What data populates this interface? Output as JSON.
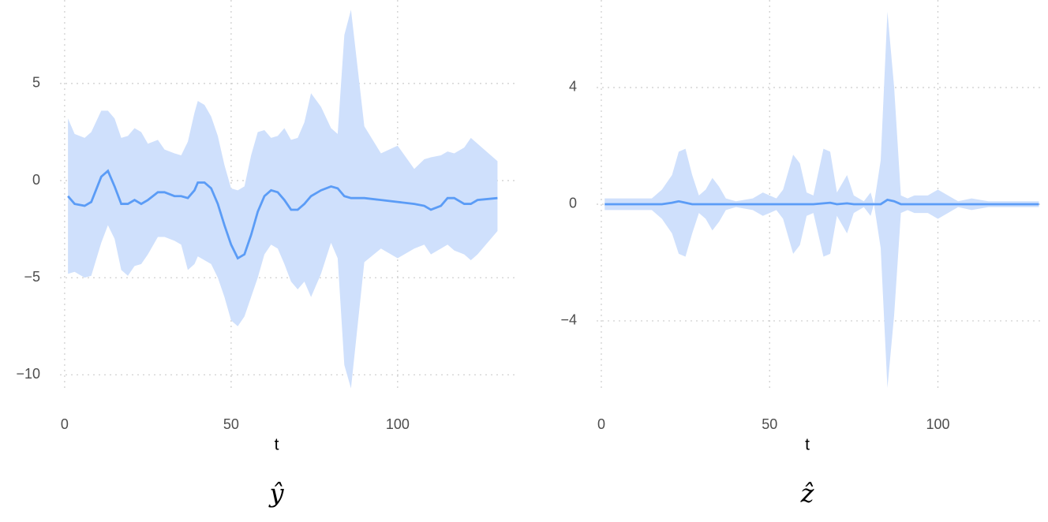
{
  "chart_data": [
    {
      "type": "line",
      "title": "ŷ",
      "xlabel": "t",
      "color": "#5b9cf6",
      "band_color": "#cfe0fc",
      "grid": true,
      "xlim": [
        -1.4,
        136.3
      ],
      "xticks": [
        0,
        50,
        100
      ],
      "ylim": [
        -10.8,
        9.3
      ],
      "yticks": [
        {
          "value": -10,
          "label": "−10"
        },
        {
          "value": -5,
          "label": "−5"
        },
        0,
        5
      ],
      "x": [
        1,
        3,
        6,
        8,
        11,
        13,
        15,
        17,
        19,
        21,
        23,
        25,
        28,
        30,
        33,
        35,
        37,
        39,
        40,
        42,
        44,
        46,
        48,
        50,
        52,
        54,
        56,
        58,
        60,
        62,
        64,
        66,
        68,
        70,
        72,
        74,
        77,
        80,
        82,
        84,
        86,
        90,
        95,
        100,
        105,
        108,
        110,
        113,
        115,
        117,
        120,
        122,
        124,
        130
      ],
      "values": [
        -0.8,
        -1.2,
        -1.3,
        -1.1,
        0.2,
        0.5,
        -0.3,
        -1.2,
        -1.2,
        -1.0,
        -1.2,
        -1.0,
        -0.6,
        -0.6,
        -0.8,
        -0.8,
        -0.9,
        -0.5,
        -0.1,
        -0.1,
        -0.4,
        -1.2,
        -2.3,
        -3.3,
        -4.0,
        -3.8,
        -2.8,
        -1.6,
        -0.8,
        -0.5,
        -0.6,
        -1.0,
        -1.5,
        -1.5,
        -1.2,
        -0.8,
        -0.5,
        -0.3,
        -0.4,
        -0.8,
        -0.9,
        -0.9,
        -1.0,
        -1.1,
        -1.2,
        -1.3,
        -1.5,
        -1.3,
        -0.9,
        -0.9,
        -1.2,
        -1.2,
        -1.0,
        -0.9
      ],
      "upper": [
        3.2,
        2.4,
        2.2,
        2.5,
        3.6,
        3.6,
        3.2,
        2.2,
        2.3,
        2.7,
        2.5,
        1.9,
        2.1,
        1.6,
        1.4,
        1.3,
        2.0,
        3.5,
        4.1,
        3.9,
        3.3,
        2.3,
        0.8,
        -0.4,
        -0.5,
        -0.3,
        1.3,
        2.5,
        2.6,
        2.2,
        2.3,
        2.7,
        2.1,
        2.2,
        3.0,
        4.5,
        3.8,
        2.7,
        2.4,
        7.5,
        8.8,
        2.8,
        1.4,
        1.8,
        0.6,
        1.1,
        1.2,
        1.3,
        1.5,
        1.4,
        1.7,
        2.2,
        1.9,
        1.0
      ],
      "lower": [
        -4.8,
        -4.7,
        -5.0,
        -4.9,
        -3.2,
        -2.3,
        -3.0,
        -4.6,
        -4.9,
        -4.4,
        -4.3,
        -3.8,
        -2.9,
        -2.9,
        -3.1,
        -3.3,
        -4.6,
        -4.3,
        -3.9,
        -4.1,
        -4.3,
        -5.0,
        -6.0,
        -7.2,
        -7.5,
        -7.0,
        -6.0,
        -5.0,
        -3.8,
        -3.3,
        -3.5,
        -4.3,
        -5.2,
        -5.6,
        -5.2,
        -6.0,
        -4.8,
        -3.2,
        -4.0,
        -9.5,
        -10.7,
        -4.2,
        -3.5,
        -4.0,
        -3.5,
        -3.3,
        -3.8,
        -3.5,
        -3.3,
        -3.6,
        -3.8,
        -4.1,
        -3.8,
        -2.6
      ]
    },
    {
      "type": "line",
      "title": "ẑ",
      "xlabel": "t",
      "color": "#5b9cf6",
      "band_color": "#cfe0fc",
      "grid": true,
      "xlim": [
        -1.4,
        131.3
      ],
      "xticks": [
        0,
        50,
        100
      ],
      "ylim": [
        -6.38,
        7.0
      ],
      "yticks": [
        {
          "value": -4,
          "label": "−4"
        },
        0,
        4
      ],
      "x": [
        1,
        10,
        15,
        18,
        21,
        23,
        25,
        27,
        29,
        31,
        33,
        35,
        37,
        40,
        45,
        48,
        50,
        52,
        54,
        57,
        59,
        61,
        63,
        66,
        68,
        70,
        73,
        75,
        78,
        80,
        81,
        83,
        85,
        87,
        89,
        91,
        93,
        97,
        100,
        103,
        106,
        110,
        115,
        130
      ],
      "values": [
        0,
        0,
        0,
        0,
        0.05,
        0.1,
        0.05,
        0,
        0,
        0,
        0,
        0,
        0,
        0,
        0,
        0,
        0,
        0,
        0,
        0,
        0,
        0,
        0,
        0.03,
        0.05,
        0,
        0.03,
        0,
        0,
        0,
        0,
        0,
        0.15,
        0.1,
        0,
        0,
        0,
        0,
        0,
        0,
        0,
        0,
        0,
        0
      ],
      "upper": [
        0.2,
        0.2,
        0.2,
        0.5,
        1.0,
        1.8,
        1.9,
        1.0,
        0.3,
        0.5,
        0.9,
        0.6,
        0.2,
        0.1,
        0.2,
        0.4,
        0.3,
        0.2,
        0.5,
        1.7,
        1.4,
        0.4,
        0.3,
        1.9,
        1.8,
        0.4,
        1.0,
        0.3,
        0.1,
        0.4,
        0.0,
        1.5,
        6.6,
        4.0,
        0.3,
        0.2,
        0.3,
        0.3,
        0.5,
        0.3,
        0.1,
        0.2,
        0.1,
        0.1
      ],
      "lower": [
        -0.2,
        -0.2,
        -0.2,
        -0.5,
        -1.0,
        -1.7,
        -1.8,
        -1.0,
        -0.3,
        -0.5,
        -0.9,
        -0.6,
        -0.2,
        -0.1,
        -0.2,
        -0.4,
        -0.3,
        -0.2,
        -0.5,
        -1.7,
        -1.4,
        -0.4,
        -0.3,
        -1.8,
        -1.7,
        -0.4,
        -1.0,
        -0.3,
        -0.1,
        -0.4,
        0.0,
        -1.5,
        -6.3,
        -3.8,
        -0.3,
        -0.2,
        -0.3,
        -0.3,
        -0.5,
        -0.3,
        -0.1,
        -0.2,
        -0.1,
        -0.1
      ]
    }
  ]
}
